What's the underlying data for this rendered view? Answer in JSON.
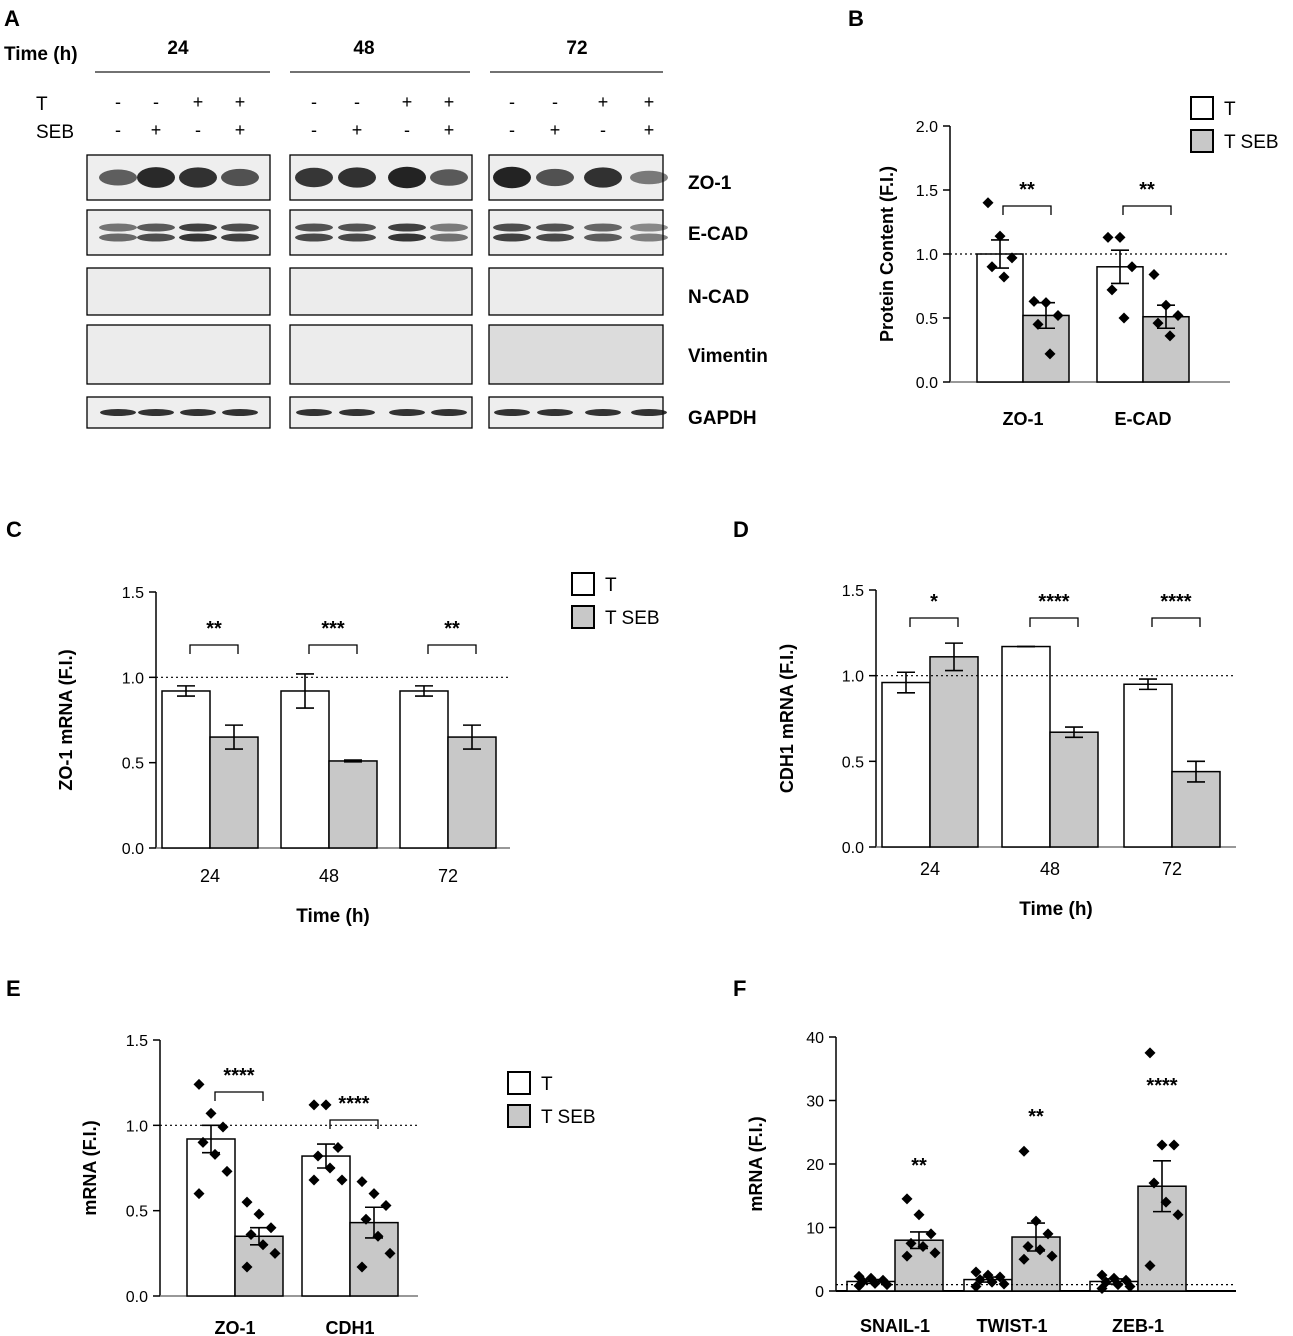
{
  "panel_a": {
    "letter": "A",
    "time_label": "Time (h)",
    "timepoints": [
      "24",
      "48",
      "72"
    ],
    "treatments": [
      {
        "name": "T",
        "signs": [
          "-",
          "-",
          "+",
          "+"
        ]
      },
      {
        "name": "SEB",
        "signs": [
          "-",
          "+",
          "-",
          "+"
        ]
      }
    ],
    "proteins": [
      "ZO-1",
      "E-CAD",
      "N-CAD",
      "Vimentin",
      "GAPDH"
    ]
  },
  "legend": {
    "t": "T",
    "tseb": "T SEB"
  },
  "colors": {
    "bar_t": "#ffffff",
    "bar_tseb": "#c8c8c8",
    "stroke": "#000000",
    "baseline": "#777777"
  },
  "chart_data": [
    {
      "id": "B",
      "letter": "B",
      "type": "bar",
      "ylabel": "Protein Content (F.I.)",
      "xlabel": "",
      "ylim": [
        0,
        2.0
      ],
      "yticks": [
        "0.0",
        "0.5",
        "1.0",
        "1.5",
        "2.0"
      ],
      "reference_line": 1.0,
      "categories": [
        "ZO-1",
        "E-CAD"
      ],
      "series": [
        {
          "name": "T",
          "values": [
            1.0,
            0.9
          ],
          "errors": [
            0.11,
            0.13
          ],
          "points": [
            [
              1.4,
              1.14,
              0.97,
              0.9,
              0.82
            ],
            [
              1.13,
              1.13,
              0.9,
              0.72,
              0.5
            ]
          ]
        },
        {
          "name": "T SEB",
          "values": [
            0.52,
            0.51
          ],
          "errors": [
            0.1,
            0.09
          ],
          "points": [
            [
              0.63,
              0.62,
              0.52,
              0.45,
              0.22
            ],
            [
              0.84,
              0.6,
              0.52,
              0.46,
              0.36
            ]
          ]
        }
      ],
      "significance": [
        "**",
        "**"
      ]
    },
    {
      "id": "C",
      "letter": "C",
      "type": "bar",
      "ylabel": "ZO-1 mRNA (F.I.)",
      "xlabel": "Time (h)",
      "ylim": [
        0,
        1.5
      ],
      "yticks": [
        "0.0",
        "0.5",
        "1.0",
        "1.5"
      ],
      "reference_line": 1.0,
      "categories": [
        "24",
        "48",
        "72"
      ],
      "series": [
        {
          "name": "T",
          "values": [
            0.92,
            0.92,
            0.92
          ],
          "errors": [
            0.03,
            0.1,
            0.03
          ]
        },
        {
          "name": "T SEB",
          "values": [
            0.65,
            0.51,
            0.65
          ],
          "errors": [
            0.07,
            0.005,
            0.07
          ]
        }
      ],
      "significance": [
        "**",
        "***",
        "**"
      ]
    },
    {
      "id": "D",
      "letter": "D",
      "type": "bar",
      "ylabel": "CDH1 mRNA (F.I.)",
      "xlabel": "Time (h)",
      "ylim": [
        0,
        1.5
      ],
      "yticks": [
        "0.0",
        "0.5",
        "1.0",
        "1.5"
      ],
      "reference_line": 1.0,
      "categories": [
        "24",
        "48",
        "72"
      ],
      "series": [
        {
          "name": "T",
          "values": [
            0.96,
            1.17,
            0.95
          ],
          "errors": [
            0.06,
            0.0,
            0.03
          ]
        },
        {
          "name": "T SEB",
          "values": [
            1.11,
            0.67,
            0.44
          ],
          "errors": [
            0.08,
            0.03,
            0.06
          ]
        }
      ],
      "significance": [
        "*",
        "****",
        "****"
      ]
    },
    {
      "id": "E",
      "letter": "E",
      "type": "bar",
      "ylabel": "mRNA (F.I.)",
      "xlabel": "",
      "ylim": [
        0,
        1.5
      ],
      "yticks": [
        "0.0",
        "0.5",
        "1.0",
        "1.5"
      ],
      "reference_line": 1.0,
      "categories": [
        "ZO-1",
        "CDH1"
      ],
      "series": [
        {
          "name": "T",
          "values": [
            0.92,
            0.82
          ],
          "errors": [
            0.08,
            0.07
          ],
          "points": [
            [
              1.24,
              1.07,
              0.99,
              0.9,
              0.83,
              0.73,
              0.6
            ],
            [
              1.12,
              1.12,
              0.87,
              0.82,
              0.75,
              0.68,
              0.68
            ]
          ]
        },
        {
          "name": "T SEB",
          "values": [
            0.35,
            0.43
          ],
          "errors": [
            0.05,
            0.09
          ],
          "points": [
            [
              0.55,
              0.48,
              0.4,
              0.36,
              0.3,
              0.25,
              0.17
            ],
            [
              0.67,
              0.6,
              0.53,
              0.45,
              0.35,
              0.25,
              0.17
            ]
          ]
        }
      ],
      "significance": [
        "****",
        "****"
      ]
    },
    {
      "id": "F",
      "letter": "F",
      "type": "bar",
      "ylabel": "mRNA (F.I.)",
      "xlabel": "",
      "ylim": [
        0,
        40
      ],
      "yticks": [
        "0",
        "10",
        "20",
        "30",
        "40"
      ],
      "reference_line": 1.0,
      "categories": [
        "SNAIL-1",
        "TWIST-1",
        "ZEB-1"
      ],
      "series": [
        {
          "name": "T",
          "values": [
            1.5,
            1.8,
            1.5
          ],
          "errors": [
            0.3,
            0.4,
            0.4
          ],
          "points": [
            [
              2.3,
              2.0,
              1.7,
              1.5,
              1.2,
              1.0,
              0.8
            ],
            [
              3.0,
              2.5,
              2.2,
              1.8,
              1.4,
              1.1,
              0.7
            ],
            [
              2.5,
              2.0,
              1.7,
              1.4,
              1.0,
              0.7,
              0.4
            ]
          ]
        },
        {
          "name": "T SEB",
          "values": [
            8.0,
            8.5,
            16.5
          ],
          "errors": [
            1.3,
            2.2,
            4.0
          ],
          "points": [
            [
              14.5,
              12.0,
              9.0,
              7.5,
              7.0,
              6.0,
              5.5
            ],
            [
              22.0,
              11.0,
              9.0,
              7.0,
              6.5,
              5.5,
              5.0
            ],
            [
              37.5,
              23.0,
              23.0,
              17.0,
              14.0,
              12.0,
              4.0
            ]
          ]
        }
      ],
      "significance": [
        "**",
        "**",
        "****"
      ]
    }
  ]
}
